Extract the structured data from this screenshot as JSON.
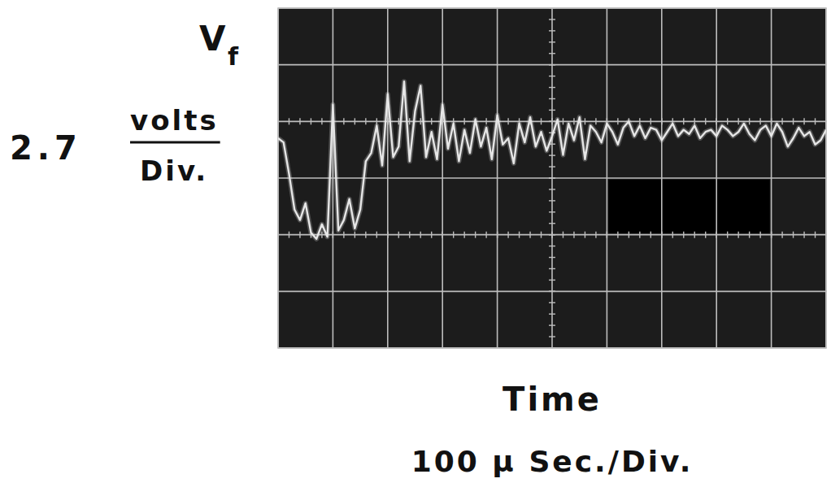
{
  "chart_data": {
    "type": "line",
    "ylabel": "V",
    "ylabel_subscript": "f",
    "yscale_label": [
      "2.7",
      "volts",
      "Div."
    ],
    "xlabel": "Time",
    "xscale_label": "100 μ Sec./Div.",
    "x": [
      0,
      10,
      20,
      30,
      40,
      50,
      60,
      70,
      80,
      90,
      100,
      110,
      120,
      130,
      140,
      150,
      160,
      170,
      180,
      190,
      200,
      210,
      220,
      230,
      240,
      250,
      260,
      270,
      280,
      290,
      300,
      310,
      320,
      330,
      340,
      350,
      360,
      370,
      380,
      390,
      400,
      410,
      420,
      430,
      440,
      450,
      460,
      470,
      480,
      490,
      500,
      510,
      520,
      530,
      540,
      550,
      560,
      570,
      580,
      590,
      600,
      610,
      620,
      630,
      640,
      650,
      660,
      670,
      680,
      690,
      700,
      710,
      720,
      730,
      740,
      750,
      760,
      770,
      780,
      790,
      800,
      810,
      820,
      830,
      840,
      850,
      860,
      870,
      880,
      890,
      900,
      910,
      920,
      930,
      940,
      950,
      960,
      970,
      980,
      990,
      1000
    ],
    "values": [
      1.9,
      1.7,
      0.2,
      -1.5,
      -2.0,
      -1.2,
      -2.6,
      -2.9,
      -2.2,
      -2.8,
      3.5,
      -2.5,
      -2.0,
      -1.0,
      -2.4,
      -1.5,
      0.8,
      1.2,
      2.5,
      0.6,
      4.0,
      1.0,
      1.5,
      4.6,
      0.8,
      3.2,
      4.4,
      1.0,
      2.2,
      0.9,
      3.5,
      1.4,
      2.6,
      0.8,
      2.3,
      1.2,
      2.8,
      1.5,
      2.4,
      0.9,
      3.0,
      1.6,
      1.9,
      0.7,
      2.6,
      1.7,
      2.9,
      1.5,
      2.2,
      1.3,
      2.0,
      2.8,
      1.1,
      2.6,
      1.8,
      2.9,
      0.9,
      2.5,
      2.2,
      1.7,
      2.6,
      2.2,
      1.6,
      2.4,
      2.7,
      2.0,
      2.5,
      1.9,
      2.4,
      2.3,
      1.8,
      2.2,
      2.6,
      2.0,
      2.3,
      2.1,
      2.5,
      1.9,
      2.2,
      2.3,
      2.0,
      2.5,
      2.3,
      2.0,
      2.2,
      2.6,
      2.1,
      1.8,
      2.3,
      2.5,
      2.0,
      2.6,
      2.2,
      1.5,
      1.9,
      2.4,
      2.0,
      2.2,
      1.6,
      1.8,
      2.3
    ],
    "color": "#e6e6e6",
    "xlim": [
      0,
      1000
    ],
    "xticks": [
      0,
      100,
      200,
      300,
      400,
      500,
      600,
      700,
      800,
      900,
      1000
    ],
    "ylim": [
      -8.1,
      8.1
    ],
    "yticks": [
      -8.1,
      -5.4,
      -2.7,
      0,
      2.7,
      5.4,
      8.1
    ],
    "grid": true,
    "tick_labels": false
  }
}
